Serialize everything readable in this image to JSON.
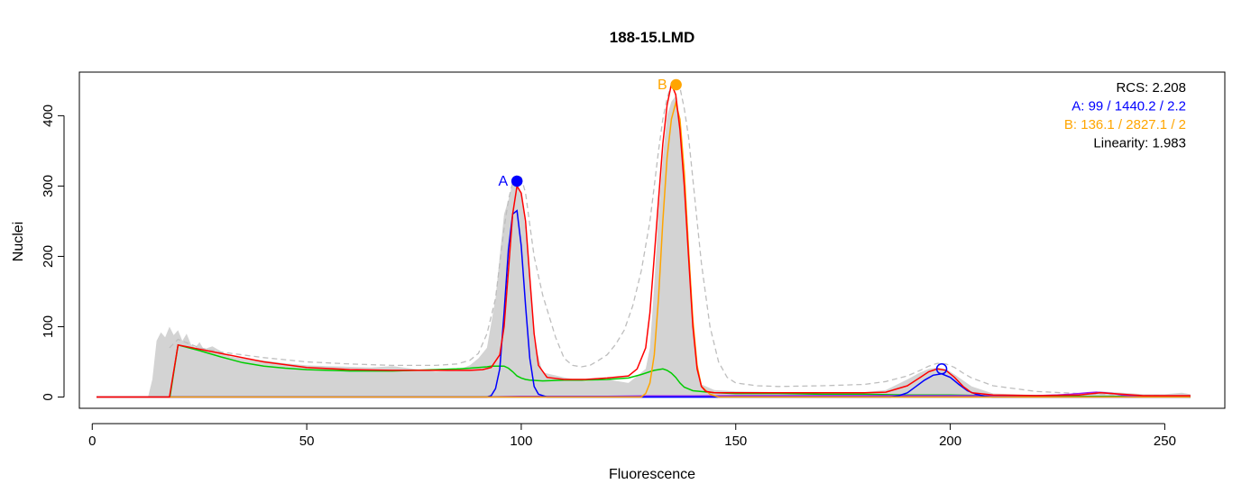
{
  "chart_data": {
    "type": "line",
    "title": "188-15.LMD",
    "xlabel": "Fluorescence",
    "ylabel": "Nuclei",
    "xlim": [
      -3,
      264
    ],
    "ylim": [
      -16,
      462
    ],
    "xticks": [
      0,
      50,
      100,
      150,
      200,
      250
    ],
    "yticks": [
      0,
      100,
      200,
      300,
      400
    ],
    "grid": false,
    "colors": {
      "histogram": "#d3d3d3",
      "fit": "#ff0000",
      "peak_a": "#0000ff",
      "peak_b": "#ffa500",
      "debris": "#00cc00",
      "aggregates": "#a020f0",
      "initial_model": "#bebebe"
    },
    "histogram": {
      "name": "",
      "x": [
        13,
        14,
        15,
        16,
        17,
        18,
        19,
        20,
        21,
        22,
        23,
        24,
        25,
        26,
        28,
        30,
        32,
        35,
        40,
        45,
        50,
        55,
        60,
        65,
        70,
        75,
        80,
        85,
        88,
        90,
        92,
        94,
        95,
        96,
        97,
        98,
        99,
        100,
        101,
        102,
        103,
        105,
        110,
        115,
        120,
        125,
        127,
        129,
        130,
        131,
        132,
        133,
        134,
        135,
        136,
        137,
        138,
        139,
        140,
        141,
        142,
        145,
        150,
        160,
        170,
        180,
        185,
        190,
        193,
        195,
        197,
        199,
        201,
        205,
        210,
        215,
        220,
        230,
        235,
        240,
        245,
        250,
        254,
        256
      ],
      "y": [
        0,
        25,
        80,
        92,
        85,
        100,
        88,
        95,
        80,
        90,
        75,
        70,
        78,
        68,
        72,
        65,
        58,
        55,
        52,
        48,
        45,
        44,
        43,
        42,
        44,
        40,
        36,
        38,
        45,
        55,
        70,
        140,
        200,
        260,
        280,
        305,
        300,
        290,
        240,
        170,
        80,
        35,
        28,
        22,
        25,
        20,
        30,
        40,
        70,
        160,
        260,
        340,
        400,
        420,
        428,
        390,
        330,
        230,
        120,
        40,
        18,
        10,
        8,
        7,
        6,
        7,
        10,
        25,
        35,
        40,
        42,
        40,
        32,
        15,
        5,
        4,
        3,
        5,
        8,
        6,
        4,
        4,
        6,
        4
      ]
    },
    "series": [
      {
        "name": "",
        "key": "fit",
        "x": [
          1,
          18,
          20,
          30,
          40,
          50,
          60,
          70,
          80,
          88,
          91,
          93,
          95,
          96,
          97,
          98,
          99,
          100,
          101,
          102,
          103,
          104,
          106,
          110,
          115,
          120,
          125,
          127,
          129,
          130,
          131,
          132,
          133,
          134,
          135,
          136,
          137,
          138,
          139,
          140,
          141,
          142,
          143,
          145,
          150,
          160,
          170,
          180,
          185,
          190,
          193,
          195,
          197,
          199,
          201,
          203,
          205,
          210,
          220,
          230,
          235,
          240,
          245,
          250,
          256
        ],
        "y": [
          0,
          0,
          74,
          62,
          50,
          42,
          39,
          38,
          38,
          38,
          39,
          42,
          60,
          100,
          180,
          260,
          300,
          290,
          250,
          170,
          90,
          45,
          28,
          25,
          25,
          27,
          30,
          40,
          70,
          120,
          200,
          280,
          360,
          415,
          445,
          430,
          380,
          300,
          200,
          100,
          40,
          15,
          8,
          6,
          6,
          6,
          6,
          6,
          7,
          16,
          28,
          36,
          40,
          38,
          28,
          15,
          6,
          3,
          2,
          3,
          6,
          4,
          2,
          2,
          2
        ]
      },
      {
        "name": "",
        "key": "peak_a",
        "x": [
          1,
          92,
          93,
          94,
          95,
          96,
          97,
          98,
          99,
          100,
          101,
          102,
          103,
          104,
          106,
          110,
          256
        ],
        "y": [
          0,
          0,
          2,
          12,
          40,
          120,
          210,
          260,
          265,
          215,
          130,
          55,
          15,
          4,
          0,
          0,
          0
        ]
      },
      {
        "name": "",
        "key": "peak_b",
        "x": [
          1,
          128,
          129,
          130,
          131,
          132,
          133,
          134,
          135,
          136,
          137,
          138,
          139,
          140,
          141,
          142,
          144,
          146,
          256
        ],
        "y": [
          0,
          0,
          5,
          20,
          60,
          140,
          250,
          340,
          395,
          418,
          395,
          320,
          210,
          110,
          45,
          15,
          4,
          0,
          0
        ]
      },
      {
        "name": "",
        "key": "peak_a_g2",
        "x": [
          1,
          186,
          188,
          190,
          192,
          194,
          196,
          198,
          200,
          202,
          204,
          206,
          208,
          210,
          256
        ],
        "y": [
          0,
          0,
          2,
          6,
          15,
          24,
          31,
          33,
          28,
          18,
          9,
          4,
          1,
          0,
          0
        ]
      },
      {
        "name": "",
        "key": "debris",
        "x": [
          18,
          18.1,
          20,
          25,
          30,
          35,
          40,
          45,
          50,
          55,
          60,
          65,
          70,
          75,
          80,
          85,
          88,
          90,
          92,
          93,
          95,
          96,
          97,
          98,
          99,
          100,
          101,
          102,
          105,
          110,
          115,
          120,
          125,
          128,
          130,
          131,
          132,
          133,
          134,
          135,
          136,
          137,
          138,
          140,
          145,
          150,
          160,
          170,
          180,
          190,
          200,
          210,
          220,
          230,
          240,
          250,
          256
        ],
        "y": [
          0,
          0,
          74,
          66,
          57,
          49,
          44,
          41,
          39,
          38,
          37,
          37,
          37,
          38,
          39,
          40,
          41,
          42,
          43,
          44,
          44,
          44,
          41,
          36,
          30,
          27,
          25,
          24,
          23,
          24,
          24,
          25,
          27,
          32,
          36,
          38,
          39,
          40,
          38,
          34,
          28,
          20,
          14,
          9,
          6,
          5,
          5,
          4,
          4,
          3,
          3,
          2,
          2,
          1,
          1,
          1,
          0
        ]
      },
      {
        "name": "",
        "key": "aggregates",
        "x": [
          1,
          90,
          100,
          110,
          120,
          130,
          140,
          150,
          160,
          170,
          180,
          190,
          200,
          210,
          220,
          225,
          228,
          230,
          232,
          234,
          236,
          238,
          240,
          242,
          244,
          246,
          250,
          256
        ],
        "y": [
          0,
          0,
          1,
          1,
          1,
          1.5,
          1.5,
          2,
          2,
          2,
          2,
          2,
          2,
          2,
          2,
          3,
          4,
          5,
          6,
          7,
          6,
          5,
          3,
          2,
          1.5,
          1,
          1,
          1
        ]
      },
      {
        "name": "",
        "key": "initial_model",
        "x": [
          18,
          20,
          25,
          30,
          40,
          50,
          60,
          70,
          80,
          85,
          88,
          90,
          92,
          94,
          95,
          96,
          97,
          98,
          99,
          100,
          101,
          102,
          103,
          105,
          108,
          110,
          112,
          114,
          116,
          118,
          120,
          122,
          124,
          126,
          128,
          130,
          131,
          132,
          133,
          134,
          135,
          136,
          137,
          138,
          139,
          140,
          141,
          142,
          144,
          146,
          148,
          150,
          155,
          160,
          170,
          180,
          185,
          190,
          193,
          195,
          197,
          199,
          201,
          203,
          205,
          210,
          220,
          230,
          240,
          250,
          256
        ],
        "y": [
          70,
          82,
          70,
          64,
          56,
          50,
          47,
          45,
          45,
          47,
          52,
          62,
          90,
          140,
          190,
          240,
          280,
          305,
          315,
          312,
          290,
          245,
          200,
          145,
          85,
          55,
          45,
          43,
          45,
          52,
          60,
          75,
          95,
          130,
          180,
          250,
          300,
          350,
          395,
          425,
          445,
          448,
          440,
          410,
          370,
          310,
          250,
          190,
          100,
          50,
          28,
          20,
          16,
          15,
          16,
          18,
          22,
          30,
          38,
          44,
          48,
          47,
          42,
          34,
          27,
          16,
          8,
          5,
          3,
          2,
          2
        ]
      }
    ],
    "markers": [
      {
        "label": "A",
        "x": 99,
        "y": 307,
        "style": "filled",
        "color": "#0000ff"
      },
      {
        "label": "B",
        "x": 136.1,
        "y": 444,
        "style": "filled",
        "color": "#ffa500"
      },
      {
        "label": "",
        "x": 198,
        "y": 40,
        "style": "open",
        "color": "#0000ff"
      }
    ],
    "legend": {
      "placement": "top-right",
      "lines": [
        {
          "text": "RCS:  2.208",
          "color": "#000000"
        },
        {
          "text": "A:  99 / 1440.2 / 2.2",
          "color": "#0000ff"
        },
        {
          "text": "B:  136.1 / 2827.1 / 2",
          "color": "#ffa500"
        },
        {
          "text": "Linearity:  1.983",
          "color": "#000000"
        }
      ]
    }
  }
}
